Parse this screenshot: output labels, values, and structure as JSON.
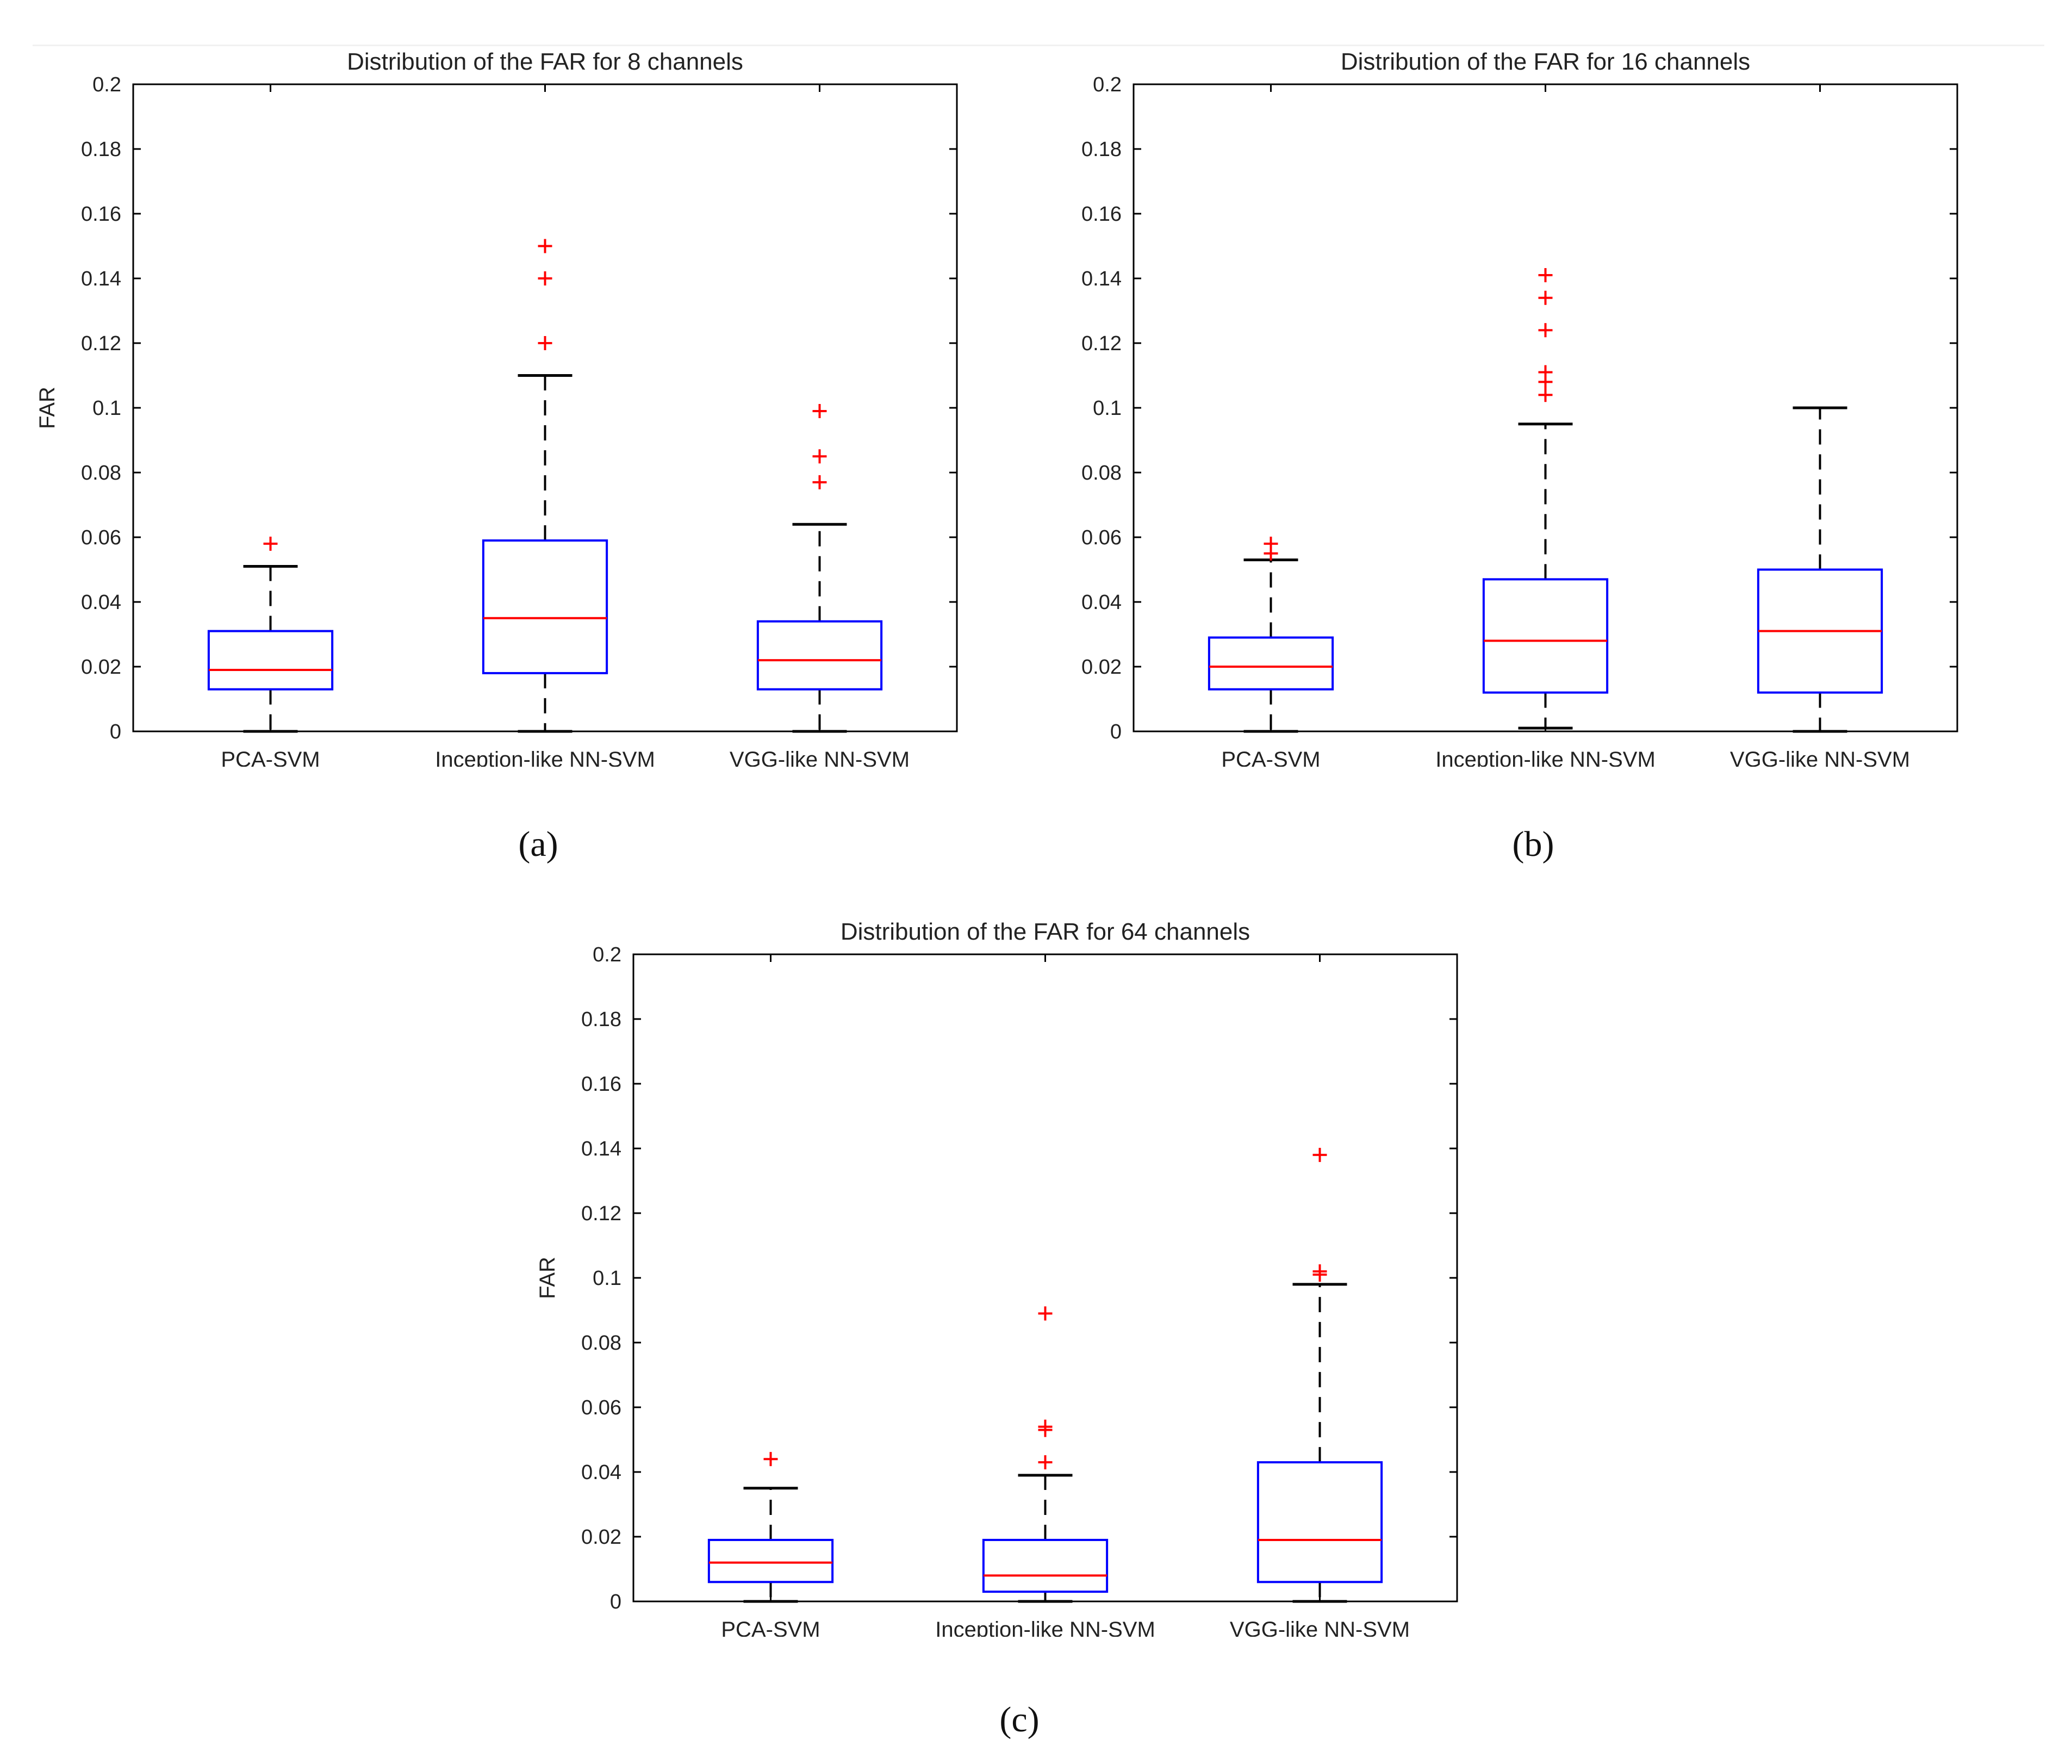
{
  "chart_data": [
    {
      "type": "box",
      "panel": "a",
      "caption": "(a)",
      "title": "Distribution of the FAR for 8 channels",
      "xlabel": "",
      "ylabel": "FAR",
      "ylim": [
        0,
        0.2
      ],
      "yticks": [
        "0",
        "0.02",
        "0.04",
        "0.06",
        "0.08",
        "0.1",
        "0.12",
        "0.14",
        "0.16",
        "0.18",
        "0.2"
      ],
      "categories": [
        "PCA-SVM",
        "Inception-like NN-SVM",
        "VGG-like NN-SVM"
      ],
      "boxes": [
        {
          "whisker_low": 0.0,
          "q1": 0.013,
          "median": 0.019,
          "q3": 0.031,
          "whisker_high": 0.051,
          "outliers": [
            0.058
          ]
        },
        {
          "whisker_low": 0.0,
          "q1": 0.018,
          "median": 0.035,
          "q3": 0.059,
          "whisker_high": 0.11,
          "outliers": [
            0.12,
            0.14,
            0.15
          ]
        },
        {
          "whisker_low": 0.0,
          "q1": 0.013,
          "median": 0.022,
          "q3": 0.034,
          "whisker_high": 0.064,
          "outliers": [
            0.077,
            0.085,
            0.099
          ]
        }
      ]
    },
    {
      "type": "box",
      "panel": "b",
      "caption": "(b)",
      "title": "Distribution of the FAR for 16 channels",
      "xlabel": "",
      "ylabel": "",
      "ylim": [
        0,
        0.2
      ],
      "yticks": [
        "0",
        "0.02",
        "0.04",
        "0.06",
        "0.08",
        "0.1",
        "0.12",
        "0.14",
        "0.16",
        "0.18",
        "0.2"
      ],
      "categories": [
        "PCA-SVM",
        "Inception-like NN-SVM",
        "VGG-like NN-SVM"
      ],
      "boxes": [
        {
          "whisker_low": 0.0,
          "q1": 0.013,
          "median": 0.02,
          "q3": 0.029,
          "whisker_high": 0.053,
          "outliers": [
            0.055,
            0.058
          ]
        },
        {
          "whisker_low": 0.001,
          "q1": 0.012,
          "median": 0.028,
          "q3": 0.047,
          "whisker_high": 0.095,
          "outliers": [
            0.104,
            0.108,
            0.111,
            0.124,
            0.134,
            0.141
          ]
        },
        {
          "whisker_low": 0.0,
          "q1": 0.012,
          "median": 0.031,
          "q3": 0.05,
          "whisker_high": 0.1,
          "outliers": []
        }
      ]
    },
    {
      "type": "box",
      "panel": "c",
      "caption": "(c)",
      "title": "Distribution of the FAR for 64 channels",
      "xlabel": "",
      "ylabel": "FAR",
      "ylim": [
        0,
        0.2
      ],
      "yticks": [
        "0",
        "0.02",
        "0.04",
        "0.06",
        "0.08",
        "0.1",
        "0.12",
        "0.14",
        "0.16",
        "0.18",
        "0.2"
      ],
      "categories": [
        "PCA-SVM",
        "Inception-like NN-SVM",
        "VGG-like NN-SVM"
      ],
      "boxes": [
        {
          "whisker_low": 0.0,
          "q1": 0.006,
          "median": 0.012,
          "q3": 0.019,
          "whisker_high": 0.035,
          "outliers": [
            0.044
          ]
        },
        {
          "whisker_low": 0.0,
          "q1": 0.003,
          "median": 0.008,
          "q3": 0.019,
          "whisker_high": 0.039,
          "outliers": [
            0.043,
            0.053,
            0.054,
            0.089
          ]
        },
        {
          "whisker_low": 0.0,
          "q1": 0.006,
          "median": 0.019,
          "q3": 0.043,
          "whisker_high": 0.098,
          "outliers": [
            0.101,
            0.102,
            0.138
          ]
        }
      ]
    }
  ],
  "colors": {
    "box": "#0000ff",
    "median": "#ff0000",
    "outlier": "#ff0000",
    "whisker": "#000000",
    "axis": "#000000",
    "text": "#222222"
  }
}
